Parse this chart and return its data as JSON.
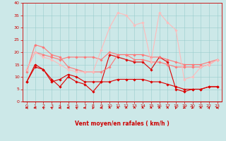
{
  "x": [
    0,
    1,
    2,
    3,
    4,
    5,
    6,
    7,
    8,
    9,
    10,
    11,
    12,
    13,
    14,
    15,
    16,
    17,
    18,
    19,
    20,
    21,
    22,
    23
  ],
  "series": [
    {
      "color": "#dd0000",
      "linewidth": 0.8,
      "marker": "D",
      "markersize": 1.8,
      "y": [
        8,
        15,
        13,
        9,
        6,
        10,
        8,
        7,
        4,
        8,
        19,
        18,
        17,
        16,
        16,
        13,
        18,
        16,
        5,
        4,
        5,
        5,
        6,
        6
      ]
    },
    {
      "color": "#dd0000",
      "linewidth": 0.8,
      "marker": "D",
      "markersize": 1.8,
      "y": [
        8,
        14,
        13,
        8,
        9,
        11,
        10,
        8,
        8,
        8,
        8,
        9,
        9,
        9,
        9,
        8,
        8,
        7,
        6,
        5,
        5,
        5,
        6,
        6
      ]
    },
    {
      "color": "#ff7777",
      "linewidth": 0.8,
      "marker": "D",
      "markersize": 1.8,
      "y": [
        13,
        20,
        19,
        18,
        17,
        18,
        18,
        18,
        18,
        17,
        20,
        19,
        19,
        19,
        19,
        18,
        18,
        17,
        16,
        15,
        15,
        15,
        16,
        17
      ]
    },
    {
      "color": "#ff7777",
      "linewidth": 0.8,
      "marker": "D",
      "markersize": 1.8,
      "y": [
        12,
        23,
        22,
        19,
        18,
        14,
        13,
        12,
        12,
        12,
        14,
        19,
        19,
        17,
        17,
        16,
        16,
        15,
        14,
        14,
        14,
        14,
        15,
        17
      ]
    },
    {
      "color": "#ffbbbb",
      "linewidth": 0.8,
      "marker": "D",
      "markersize": 1.8,
      "y": [
        13,
        20,
        18,
        17,
        15,
        13,
        12,
        12,
        12,
        21,
        30,
        36,
        35,
        31,
        32,
        16,
        36,
        32,
        29,
        9,
        10,
        14,
        15,
        17
      ]
    }
  ],
  "xlabel": "Vent moyen/en rafales ( km/h )",
  "ylim": [
    0,
    40
  ],
  "xlim": [
    -0.5,
    23.5
  ],
  "yticks": [
    0,
    5,
    10,
    15,
    20,
    25,
    30,
    35,
    40
  ],
  "xticks": [
    0,
    1,
    2,
    3,
    4,
    5,
    6,
    7,
    8,
    9,
    10,
    11,
    12,
    13,
    14,
    15,
    16,
    17,
    18,
    19,
    20,
    21,
    22,
    23
  ],
  "bg_color": "#cce8e8",
  "grid_color": "#99cccc",
  "axis_color": "#cc0000",
  "tick_color": "#cc0000",
  "label_color": "#cc0000",
  "arrow_angles": [
    180,
    180,
    160,
    160,
    180,
    180,
    160,
    180,
    225,
    180,
    90,
    80,
    90,
    90,
    90,
    80,
    75,
    80,
    225,
    200,
    210,
    90,
    45,
    180
  ]
}
